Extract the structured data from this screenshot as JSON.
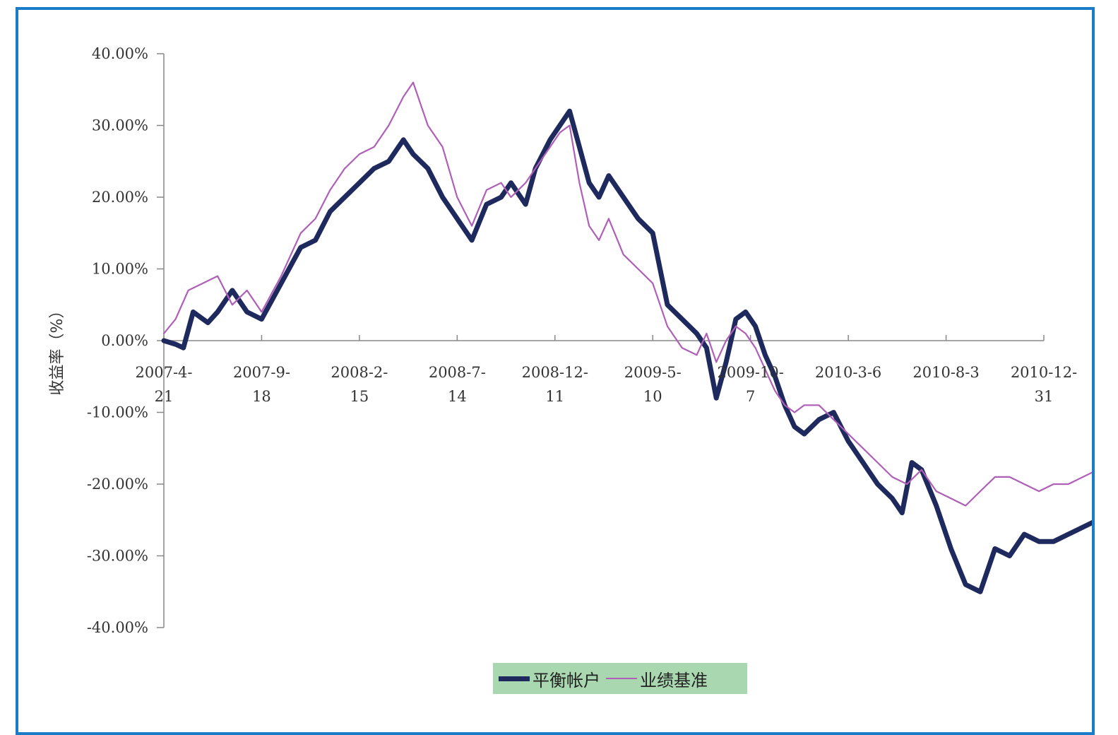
{
  "chart_data": {
    "type": "line",
    "ylabel": "收益率（%）",
    "ylim": [
      -40,
      40
    ],
    "y_ticks": [
      "40.00%",
      "30.00%",
      "20.00%",
      "10.00%",
      "0.00%",
      "-10.00%",
      "-20.00%",
      "-30.00%",
      "-40.00%"
    ],
    "y_tick_values": [
      40,
      30,
      20,
      10,
      0,
      -10,
      -20,
      -30,
      -40
    ],
    "x_ticks": [
      {
        "line1": "2007-4-",
        "line2": "21"
      },
      {
        "line1": "2007-9-",
        "line2": "18"
      },
      {
        "line1": "2008-2-",
        "line2": "15"
      },
      {
        "line1": "2008-7-",
        "line2": "14"
      },
      {
        "line1": "2008-12-",
        "line2": "11"
      },
      {
        "line1": "2009-5-",
        "line2": "10"
      },
      {
        "line1": "2009-10-",
        "line2": "7"
      },
      {
        "line1": "2010-3-6",
        "line2": ""
      },
      {
        "line1": "2010-8-3",
        "line2": ""
      },
      {
        "line1": "2010-12-",
        "line2": "31"
      }
    ],
    "series": [
      {
        "name": "平衡帐户",
        "color": "#1e2a5e",
        "points": [
          [
            0,
            0
          ],
          [
            0.12,
            -0.5
          ],
          [
            0.2,
            -1
          ],
          [
            0.3,
            4
          ],
          [
            0.45,
            2.5
          ],
          [
            0.55,
            4
          ],
          [
            0.7,
            7
          ],
          [
            0.85,
            4
          ],
          [
            1.0,
            3
          ],
          [
            1.2,
            8
          ],
          [
            1.4,
            13
          ],
          [
            1.55,
            14
          ],
          [
            1.7,
            18
          ],
          [
            1.85,
            20
          ],
          [
            2.0,
            22
          ],
          [
            2.15,
            24
          ],
          [
            2.3,
            25
          ],
          [
            2.45,
            28
          ],
          [
            2.55,
            26
          ],
          [
            2.7,
            24
          ],
          [
            2.85,
            20
          ],
          [
            3.0,
            17
          ],
          [
            3.15,
            14
          ],
          [
            3.3,
            19
          ],
          [
            3.45,
            20
          ],
          [
            3.55,
            22
          ],
          [
            3.7,
            19
          ],
          [
            3.8,
            24
          ],
          [
            3.95,
            28
          ],
          [
            4.05,
            30
          ],
          [
            4.15,
            32
          ],
          [
            4.25,
            27
          ],
          [
            4.35,
            22
          ],
          [
            4.45,
            20
          ],
          [
            4.55,
            23
          ],
          [
            4.7,
            20
          ],
          [
            4.85,
            17
          ],
          [
            5.0,
            15
          ],
          [
            5.15,
            5
          ],
          [
            5.3,
            3
          ],
          [
            5.45,
            1
          ],
          [
            5.55,
            -1
          ],
          [
            5.65,
            -8
          ],
          [
            5.75,
            -3
          ],
          [
            5.85,
            3
          ],
          [
            5.95,
            4
          ],
          [
            6.05,
            2
          ],
          [
            6.15,
            -2
          ],
          [
            6.25,
            -5
          ],
          [
            6.35,
            -9
          ],
          [
            6.45,
            -12
          ],
          [
            6.55,
            -13
          ],
          [
            6.7,
            -11
          ],
          [
            6.85,
            -10
          ],
          [
            7.0,
            -14
          ],
          [
            7.15,
            -17
          ],
          [
            7.3,
            -20
          ],
          [
            7.45,
            -22
          ],
          [
            7.55,
            -24
          ],
          [
            7.65,
            -17
          ],
          [
            7.75,
            -18
          ],
          [
            7.9,
            -23
          ],
          [
            8.05,
            -29
          ],
          [
            8.2,
            -34
          ],
          [
            8.35,
            -35
          ],
          [
            8.5,
            -29
          ],
          [
            8.65,
            -30
          ],
          [
            8.8,
            -27
          ],
          [
            8.95,
            -28
          ],
          [
            9.1,
            -28
          ],
          [
            9.25,
            -27
          ],
          [
            9.4,
            -26
          ],
          [
            9.55,
            -25
          ],
          [
            9.7,
            -24
          ],
          [
            9.85,
            -22
          ],
          [
            10.0,
            -21
          ],
          [
            10.15,
            -22
          ],
          [
            10.3,
            -20
          ],
          [
            10.45,
            -20
          ],
          [
            10.6,
            -19
          ],
          [
            10.75,
            -18
          ],
          [
            10.9,
            -18
          ],
          [
            11.05,
            -16
          ],
          [
            11.2,
            -15
          ],
          [
            11.35,
            -14
          ],
          [
            11.5,
            -13
          ],
          [
            11.65,
            -11
          ],
          [
            11.8,
            -10
          ],
          [
            11.95,
            -8
          ],
          [
            12.1,
            -7
          ],
          [
            12.25,
            -5
          ],
          [
            12.4,
            -3
          ],
          [
            12.5,
            -2
          ],
          [
            12.58,
            -1
          ],
          [
            12.65,
            -5
          ],
          [
            12.75,
            -10
          ],
          [
            12.85,
            -13
          ],
          [
            12.95,
            -17
          ],
          [
            13.05,
            -14
          ],
          [
            13.15,
            -13
          ],
          [
            13.3,
            -12
          ],
          [
            13.45,
            -11
          ],
          [
            13.6,
            -10
          ],
          [
            13.75,
            -9
          ],
          [
            13.9,
            -7
          ],
          [
            14.05,
            -5
          ],
          [
            14.2,
            -4
          ],
          [
            14.35,
            -3
          ],
          [
            14.5,
            -3
          ],
          [
            14.65,
            -5
          ],
          [
            14.8,
            -8
          ],
          [
            14.95,
            -6
          ],
          [
            15.1,
            -8
          ],
          [
            15.25,
            -11
          ],
          [
            15.4,
            -10
          ],
          [
            15.55,
            -11
          ],
          [
            15.7,
            -10
          ],
          [
            15.85,
            -9
          ],
          [
            16.0,
            -10
          ],
          [
            16.15,
            -9
          ],
          [
            16.3,
            -8
          ],
          [
            16.45,
            -7
          ],
          [
            16.55,
            -9
          ],
          [
            16.7,
            -12
          ],
          [
            16.85,
            -18
          ],
          [
            17.0,
            -20
          ],
          [
            17.15,
            -18
          ],
          [
            17.3,
            -19
          ],
          [
            17.45,
            -20
          ],
          [
            17.55,
            -21
          ],
          [
            17.65,
            -24
          ],
          [
            17.8,
            -24
          ],
          [
            17.95,
            -23
          ],
          [
            18.1,
            -22
          ],
          [
            18.25,
            -21
          ],
          [
            18.4,
            -20
          ],
          [
            18.55,
            -20
          ],
          [
            18.7,
            -19
          ],
          [
            18.85,
            -19
          ],
          [
            19.0,
            -18
          ],
          [
            19.15,
            -18
          ],
          [
            19.3,
            -17
          ],
          [
            19.45,
            -14
          ],
          [
            19.6,
            -12
          ],
          [
            19.75,
            -10
          ],
          [
            19.9,
            -13
          ],
          [
            20.05,
            -12
          ],
          [
            20.2,
            -11
          ],
          [
            20.35,
            -12
          ],
          [
            20.45,
            -10
          ],
          [
            20.55,
            -13
          ],
          [
            20.65,
            -16
          ]
        ]
      },
      {
        "name": "业绩基准",
        "color": "#b05fb8",
        "points": [
          [
            0,
            1
          ],
          [
            0.12,
            3
          ],
          [
            0.25,
            7
          ],
          [
            0.4,
            8
          ],
          [
            0.55,
            9
          ],
          [
            0.7,
            5
          ],
          [
            0.85,
            7
          ],
          [
            1.0,
            4
          ],
          [
            1.2,
            9
          ],
          [
            1.4,
            15
          ],
          [
            1.55,
            17
          ],
          [
            1.7,
            21
          ],
          [
            1.85,
            24
          ],
          [
            2.0,
            26
          ],
          [
            2.15,
            27
          ],
          [
            2.3,
            30
          ],
          [
            2.45,
            34
          ],
          [
            2.55,
            36
          ],
          [
            2.7,
            30
          ],
          [
            2.85,
            27
          ],
          [
            3.0,
            20
          ],
          [
            3.15,
            16
          ],
          [
            3.3,
            21
          ],
          [
            3.45,
            22
          ],
          [
            3.55,
            20
          ],
          [
            3.7,
            22
          ],
          [
            3.8,
            24
          ],
          [
            3.95,
            27
          ],
          [
            4.05,
            29
          ],
          [
            4.15,
            30
          ],
          [
            4.25,
            22
          ],
          [
            4.35,
            16
          ],
          [
            4.45,
            14
          ],
          [
            4.55,
            17
          ],
          [
            4.7,
            12
          ],
          [
            4.85,
            10
          ],
          [
            5.0,
            8
          ],
          [
            5.15,
            2
          ],
          [
            5.3,
            -1
          ],
          [
            5.45,
            -2
          ],
          [
            5.55,
            1
          ],
          [
            5.65,
            -3
          ],
          [
            5.75,
            0
          ],
          [
            5.85,
            2
          ],
          [
            5.95,
            1
          ],
          [
            6.05,
            -1
          ],
          [
            6.15,
            -4
          ],
          [
            6.25,
            -7
          ],
          [
            6.35,
            -9
          ],
          [
            6.45,
            -10
          ],
          [
            6.55,
            -9
          ],
          [
            6.7,
            -9
          ],
          [
            6.85,
            -11
          ],
          [
            7.0,
            -13
          ],
          [
            7.15,
            -15
          ],
          [
            7.3,
            -17
          ],
          [
            7.45,
            -19
          ],
          [
            7.6,
            -20
          ],
          [
            7.75,
            -18
          ],
          [
            7.9,
            -21
          ],
          [
            8.05,
            -22
          ],
          [
            8.2,
            -23
          ],
          [
            8.35,
            -21
          ],
          [
            8.5,
            -19
          ],
          [
            8.65,
            -19
          ],
          [
            8.8,
            -20
          ],
          [
            8.95,
            -21
          ],
          [
            9.1,
            -20
          ],
          [
            9.25,
            -20
          ],
          [
            9.4,
            -19
          ],
          [
            9.55,
            -18
          ],
          [
            9.7,
            -17
          ],
          [
            9.85,
            -15
          ],
          [
            10.0,
            -14
          ],
          [
            10.15,
            -15
          ],
          [
            10.3,
            -14
          ],
          [
            10.45,
            -13
          ],
          [
            10.6,
            -12
          ],
          [
            10.75,
            -11
          ],
          [
            10.9,
            -11
          ],
          [
            11.05,
            -10
          ],
          [
            11.2,
            -9
          ],
          [
            11.35,
            -8
          ],
          [
            11.5,
            -7
          ],
          [
            11.65,
            -6
          ],
          [
            11.8,
            -5
          ],
          [
            11.95,
            -4
          ],
          [
            12.1,
            -3
          ],
          [
            12.25,
            -2
          ],
          [
            12.4,
            -1
          ],
          [
            12.5,
            1
          ],
          [
            12.58,
            2
          ],
          [
            12.65,
            -1
          ],
          [
            12.75,
            -4
          ],
          [
            12.85,
            -6
          ],
          [
            12.95,
            -7
          ],
          [
            13.05,
            -6
          ],
          [
            13.15,
            -5
          ],
          [
            13.3,
            -5
          ],
          [
            13.45,
            -4
          ],
          [
            13.6,
            -3
          ],
          [
            13.75,
            -2
          ],
          [
            13.9,
            -1
          ],
          [
            14.05,
            0
          ],
          [
            14.2,
            0
          ],
          [
            14.35,
            0.5
          ],
          [
            14.5,
            0
          ],
          [
            14.65,
            -1
          ],
          [
            14.8,
            -2
          ],
          [
            14.95,
            -1
          ],
          [
            15.1,
            -2
          ],
          [
            15.25,
            -4
          ],
          [
            15.4,
            -3
          ],
          [
            15.55,
            -4
          ],
          [
            15.7,
            -3
          ],
          [
            15.85,
            -3
          ],
          [
            16.0,
            -2
          ],
          [
            16.15,
            -2
          ],
          [
            16.3,
            -1
          ],
          [
            16.45,
            -1
          ],
          [
            16.55,
            -2
          ],
          [
            16.7,
            -4
          ],
          [
            16.85,
            -7
          ],
          [
            17.0,
            -9
          ],
          [
            17.15,
            -8
          ],
          [
            17.3,
            -9
          ],
          [
            17.45,
            -10
          ],
          [
            17.55,
            -11
          ],
          [
            17.65,
            -12
          ],
          [
            17.8,
            -11
          ],
          [
            17.95,
            -10
          ],
          [
            18.1,
            -9
          ],
          [
            18.25,
            -9
          ],
          [
            18.4,
            -8
          ],
          [
            18.55,
            -8
          ],
          [
            18.7,
            -8
          ],
          [
            18.85,
            -8
          ],
          [
            19.0,
            -7
          ],
          [
            19.15,
            -7
          ],
          [
            19.3,
            -6
          ],
          [
            19.45,
            -4
          ],
          [
            19.6,
            -2
          ],
          [
            19.75,
            -1
          ],
          [
            19.9,
            -4
          ],
          [
            20.05,
            -5
          ],
          [
            20.2,
            -5
          ],
          [
            20.35,
            -5
          ],
          [
            20.45,
            -5
          ],
          [
            20.55,
            -6
          ],
          [
            20.65,
            -6
          ]
        ]
      }
    ]
  }
}
